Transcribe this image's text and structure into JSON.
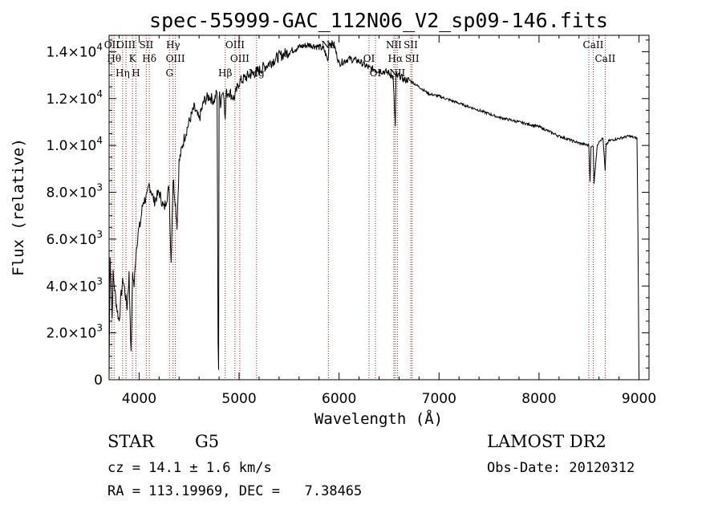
{
  "chart_data": {
    "type": "line",
    "title": "spec-55999-GAC_112N06_V2_sp09-146.fits",
    "xlabel": "Wavelength (Å)",
    "ylabel": "Flux (relative)",
    "xlim": [
      3700,
      9100
    ],
    "ylim": [
      0,
      14700
    ],
    "x_ticks": [
      {
        "value": 4000,
        "label": "4000"
      },
      {
        "value": 5000,
        "label": "5000"
      },
      {
        "value": 6000,
        "label": "6000"
      },
      {
        "value": 7000,
        "label": "7000"
      },
      {
        "value": 8000,
        "label": "8000"
      },
      {
        "value": 9000,
        "label": "9000"
      }
    ],
    "y_ticks": [
      {
        "value": 0,
        "mant": "0",
        "exp": ""
      },
      {
        "value": 2000,
        "mant": "2.0×10",
        "exp": "3"
      },
      {
        "value": 4000,
        "mant": "4.0×10",
        "exp": "3"
      },
      {
        "value": 6000,
        "mant": "6.0×10",
        "exp": "3"
      },
      {
        "value": 8000,
        "mant": "8.0×10",
        "exp": "3"
      },
      {
        "value": 10000,
        "mant": "1.0×10",
        "exp": "4"
      },
      {
        "value": 12000,
        "mant": "1.2×10",
        "exp": "4"
      },
      {
        "value": 14000,
        "mant": "1.4×10",
        "exp": "4"
      }
    ],
    "series": [
      {
        "name": "spectrum",
        "x": [
          3700,
          3710,
          3720,
          3730,
          3740,
          3760,
          3780,
          3800,
          3820,
          3840,
          3860,
          3880,
          3900,
          3920,
          3935,
          3950,
          3968,
          3990,
          4010,
          4040,
          4080,
          4100,
          4120,
          4150,
          4200,
          4250,
          4300,
          4320,
          4340,
          4360,
          4380,
          4400,
          4450,
          4500,
          4550,
          4600,
          4650,
          4700,
          4750,
          4780,
          4790,
          4795,
          4800,
          4805,
          4810,
          4815,
          4830,
          4850,
          4861,
          4870,
          4900,
          4950,
          5000,
          5100,
          5200,
          5300,
          5400,
          5500,
          5600,
          5700,
          5800,
          5850,
          5890,
          5900,
          5950,
          6000,
          6100,
          6200,
          6300,
          6400,
          6500,
          6540,
          6563,
          6570,
          6580,
          6600,
          6650,
          6700,
          6800,
          6900,
          7000,
          7200,
          7400,
          7600,
          7800,
          8000,
          8200,
          8400,
          8498,
          8510,
          8520,
          8542,
          8550,
          8580,
          8600,
          8640,
          8662,
          8670,
          8700,
          8800,
          8900,
          8980,
          8990,
          9000
        ],
        "values": [
          200,
          5200,
          4200,
          2600,
          4500,
          3700,
          3000,
          2500,
          3600,
          4300,
          3700,
          3100,
          4500,
          1000,
          4600,
          4000,
          5400,
          6300,
          6600,
          7600,
          7800,
          8300,
          8100,
          7600,
          8000,
          7300,
          8200,
          5000,
          8600,
          7700,
          6600,
          9300,
          10300,
          11000,
          11600,
          11100,
          11900,
          12100,
          11900,
          12300,
          1800,
          500,
          12000,
          12100,
          12000,
          11800,
          12300,
          12200,
          11000,
          12200,
          12300,
          12000,
          12700,
          13000,
          13200,
          13500,
          13800,
          14000,
          14200,
          14300,
          14200,
          14100,
          13600,
          14400,
          14300,
          13500,
          13700,
          13600,
          13300,
          13200,
          13100,
          12900,
          10800,
          13100,
          12900,
          13000,
          12800,
          12800,
          12500,
          12200,
          12100,
          11800,
          11500,
          11200,
          11000,
          10800,
          10400,
          10100,
          10000,
          8500,
          9900,
          10000,
          8400,
          9900,
          10200,
          10300,
          8900,
          10000,
          10200,
          10300,
          10400,
          10300,
          6000,
          200
        ]
      }
    ],
    "lines": [
      {
        "wave": 3727,
        "labels": [
          "OII"
        ]
      },
      {
        "wave": 3750,
        "labels": [
          "Hθ"
        ]
      },
      {
        "wave": 3835,
        "labels": [
          "Hη"
        ]
      },
      {
        "wave": 3869,
        "labels": [
          "OIII"
        ]
      },
      {
        "wave": 3934,
        "labels": [
          "K"
        ]
      },
      {
        "wave": 3969,
        "labels": [
          "H"
        ]
      },
      {
        "wave": 4072,
        "labels": [
          "SII"
        ]
      },
      {
        "wave": 4102,
        "labels": [
          "Hδ"
        ]
      },
      {
        "wave": 4304,
        "labels": [
          "G"
        ]
      },
      {
        "wave": 4340,
        "labels": [
          "Hγ"
        ]
      },
      {
        "wave": 4363,
        "labels": [
          "OIII"
        ]
      },
      {
        "wave": 4861,
        "labels": [
          "Hβ"
        ]
      },
      {
        "wave": 4959,
        "labels": [
          "OIII"
        ]
      },
      {
        "wave": 5007,
        "labels": [
          "OIII"
        ]
      },
      {
        "wave": 5175,
        "labels": [
          "Mg"
        ]
      },
      {
        "wave": 5893,
        "labels": [
          "Na"
        ]
      },
      {
        "wave": 6300,
        "labels": [
          "OI"
        ]
      },
      {
        "wave": 6364,
        "labels": [
          "OI"
        ]
      },
      {
        "wave": 6548,
        "labels": [
          "NII"
        ]
      },
      {
        "wave": 6563,
        "labels": [
          "Hα"
        ]
      },
      {
        "wave": 6583,
        "labels": [
          "NII"
        ]
      },
      {
        "wave": 6717,
        "labels": [
          "SII"
        ]
      },
      {
        "wave": 6731,
        "labels": [
          "SII"
        ]
      },
      {
        "wave": 8498,
        "labels": []
      },
      {
        "wave": 8542,
        "labels": [
          "CaII"
        ]
      },
      {
        "wave": 8662,
        "labels": [
          "CaII"
        ]
      }
    ]
  },
  "info": {
    "class_label": "STAR",
    "subclass": "G5",
    "cz_text": "cz = 14.1 ± 1.6 km/s",
    "coords_text": "RA = 113.19969, DEC =   7.38465",
    "survey": "LAMOST DR2",
    "obs_date": "Obs-Date: 20120312"
  },
  "colors": {
    "line_marker": "#a02020",
    "spectrum": "#000000"
  }
}
